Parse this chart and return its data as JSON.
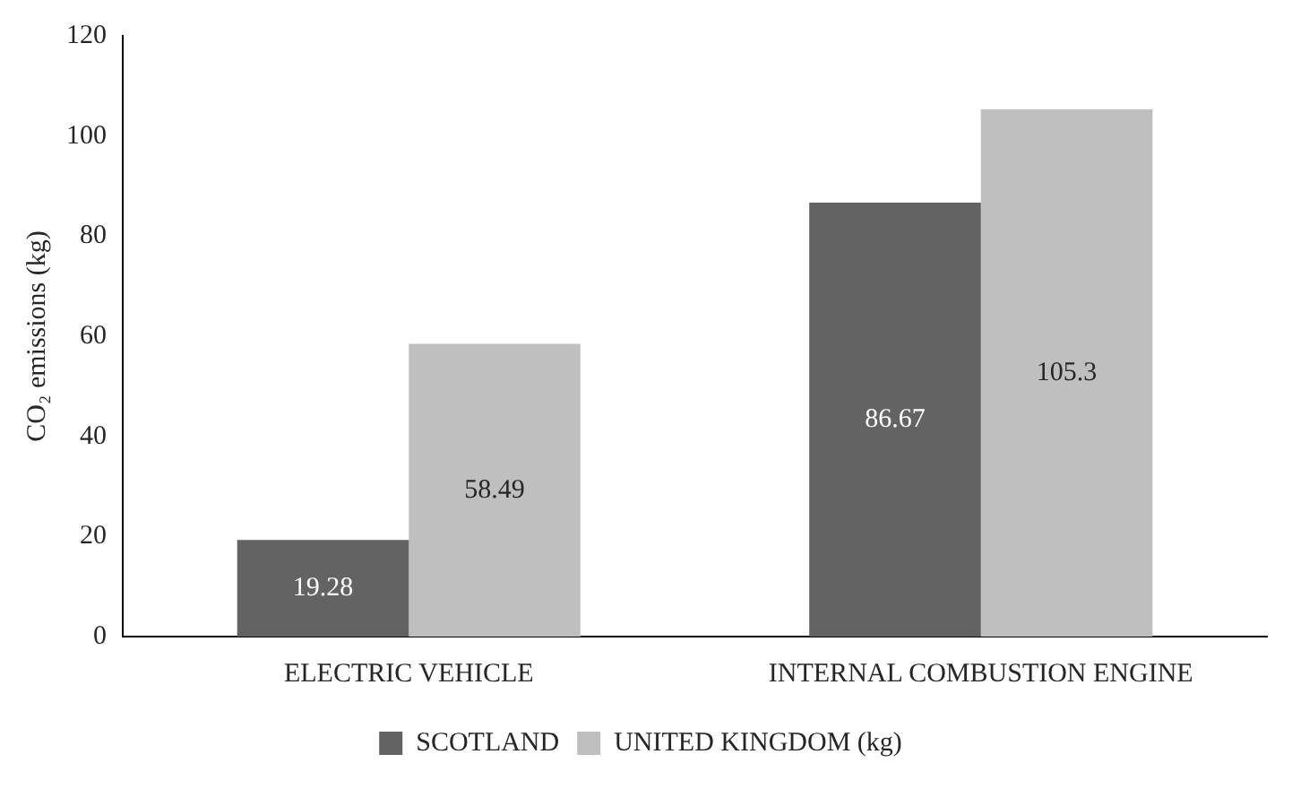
{
  "chart_data": {
    "type": "bar",
    "ylabel": "CO₂ emissions (kg)",
    "categories": [
      "ELECTRIC VEHICLE",
      "INTERNAL COMBUSTION ENGINE"
    ],
    "series": [
      {
        "name": "SCOTLAND",
        "color": "#636363",
        "values": [
          19.28,
          86.67
        ]
      },
      {
        "name": "UNITED KINGDOM (kg)",
        "color": "#bfbfbf",
        "values": [
          58.49,
          105.3
        ]
      }
    ],
    "ylim": [
      0,
      120
    ],
    "yticks": [
      0,
      20,
      40,
      60,
      80,
      100,
      120
    ],
    "grid": false,
    "legend": "bottom",
    "data_labels": true
  }
}
